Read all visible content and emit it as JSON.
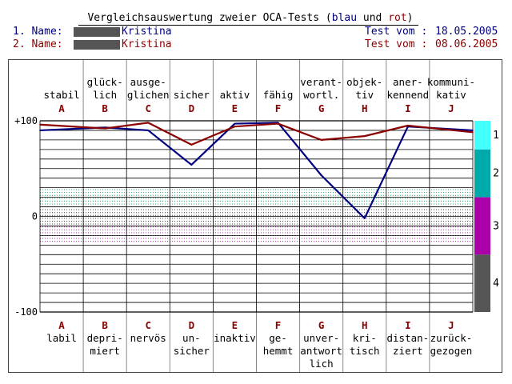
{
  "header": {
    "title_prefix": "Vergleichsauswertung zweier OCA-Tests (",
    "title_blue": "blau",
    "title_und": " und ",
    "title_red": "rot",
    "title_suffix": ")",
    "row1_label": "1. Name:",
    "row1_name": "Kristina",
    "row1_test_label": "Test vom :",
    "row1_date": "18.05.2005",
    "row2_label": "2. Name:",
    "row2_name": "Kristina",
    "row2_test_label": "Test vom :",
    "row2_date": "08.06.2005"
  },
  "colors": {
    "blue": "#000080",
    "red": "#8b0000",
    "grid": "#000000",
    "band_cyan": "#44ffff",
    "band_teal": "#00aaaa",
    "band_magenta": "#aa00aa",
    "band_gray": "#555555"
  },
  "chart_data": {
    "type": "line",
    "categories": [
      "A",
      "B",
      "C",
      "D",
      "E",
      "F",
      "G",
      "H",
      "I",
      "J"
    ],
    "top_labels": [
      [
        "stabil"
      ],
      [
        "glück-",
        "lich"
      ],
      [
        "ausge-",
        "glichen"
      ],
      [
        "sicher"
      ],
      [
        "aktiv"
      ],
      [
        "fähig"
      ],
      [
        "verant-",
        "wortl."
      ],
      [
        "objek-",
        "tiv"
      ],
      [
        "aner-",
        "kennend"
      ],
      [
        "kommuni-",
        "kativ"
      ]
    ],
    "bottom_labels": [
      [
        "labil"
      ],
      [
        "depri-",
        "miert"
      ],
      [
        "nervös"
      ],
      [
        "un-",
        "sicher"
      ],
      [
        "inaktiv"
      ],
      [
        "ge-",
        "hemmt"
      ],
      [
        "unver-",
        "antwort",
        "lich"
      ],
      [
        "kri-",
        "tisch"
      ],
      [
        "distan-",
        "ziert"
      ],
      [
        "zurück-",
        "gezogen"
      ]
    ],
    "ylim": [
      -100,
      100
    ],
    "y_tick_labels": [
      "+100",
      "0",
      "-100"
    ],
    "series": [
      {
        "color": "blue",
        "values": [
          90,
          93,
          90,
          54,
          97,
          98,
          43,
          -2,
          94,
          90
        ]
      },
      {
        "color": "red",
        "values": [
          96,
          92,
          98,
          75,
          94,
          97,
          80,
          84,
          95,
          88
        ]
      }
    ],
    "side_bands": [
      "1",
      "2",
      "3",
      "4"
    ],
    "grid": true
  }
}
